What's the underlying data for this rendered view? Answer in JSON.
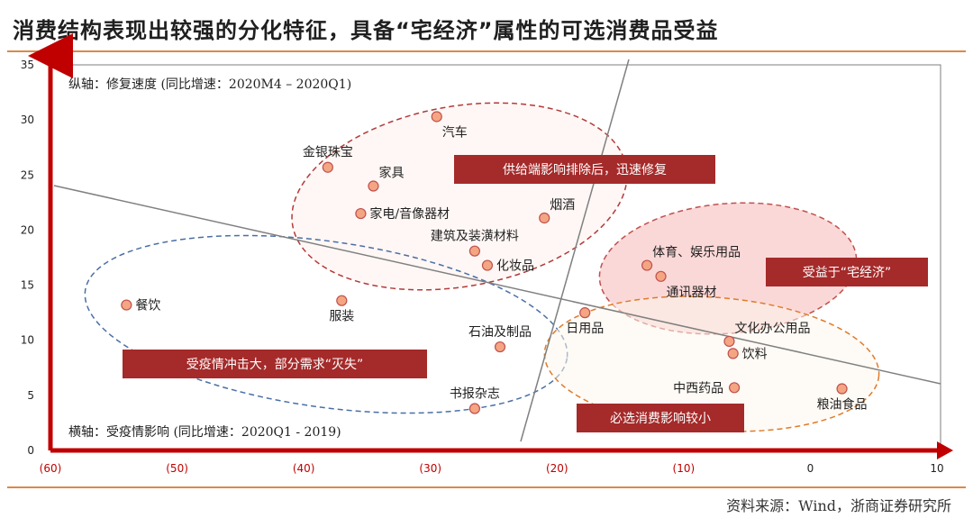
{
  "header": {
    "title": "消费结构表现出较强的分化特征，具备“宅经济”属性的可选消费品受益"
  },
  "footer": {
    "source": "资料来源：Wind，浙商证券研究所"
  },
  "colors": {
    "axis": "#c00000",
    "frame": "#7f7f7f",
    "point_fill": "#f4a582",
    "point_stroke": "#c0504d",
    "callout_fill": "#a52a2a",
    "title_rule": "#d98a4a",
    "positive_tick": "#222222"
  },
  "chart_data": {
    "type": "scatter",
    "title": "消费结构表现出较强的分化特征，具备“宅经济”属性的可选消费品受益",
    "xlabel": "横轴：受疫情影响 (同比增速：2020Q1 - 2019)",
    "ylabel": "纵轴：修复速度 (同比增速：2020M4 – 2020Q1)",
    "xlim": [
      -60,
      10
    ],
    "ylim": [
      0,
      35
    ],
    "x_ticks": [
      {
        "value": -60,
        "label": "(60)"
      },
      {
        "value": -50,
        "label": "(50)"
      },
      {
        "value": -40,
        "label": "(40)"
      },
      {
        "value": -30,
        "label": "(30)"
      },
      {
        "value": -20,
        "label": "(20)"
      },
      {
        "value": -10,
        "label": "(10)"
      },
      {
        "value": 0,
        "label": "0"
      },
      {
        "value": 10,
        "label": "10"
      }
    ],
    "y_ticks": [
      {
        "value": 0,
        "label": "0"
      },
      {
        "value": 5,
        "label": "5"
      },
      {
        "value": 10,
        "label": "10"
      },
      {
        "value": 15,
        "label": "15"
      },
      {
        "value": 20,
        "label": "20"
      },
      {
        "value": 25,
        "label": "25"
      },
      {
        "value": 30,
        "label": "30"
      },
      {
        "value": 35,
        "label": "35"
      }
    ],
    "grid": false,
    "points": [
      {
        "name": "汽车",
        "x": -29.5,
        "y": 30.3,
        "label_pos": "below-right"
      },
      {
        "name": "金银珠宝",
        "x": -38.1,
        "y": 25.7,
        "label_pos": "above"
      },
      {
        "name": "家具",
        "x": -34.5,
        "y": 24.0,
        "label_pos": "above-right"
      },
      {
        "name": "家电/音像器材",
        "x": -35.5,
        "y": 21.5,
        "label_pos": "right"
      },
      {
        "name": "烟酒",
        "x": -21.0,
        "y": 21.1,
        "label_pos": "above-right"
      },
      {
        "name": "建筑及装潢材料",
        "x": -26.5,
        "y": 18.1,
        "label_pos": "above"
      },
      {
        "name": "化妆品",
        "x": -25.5,
        "y": 16.8,
        "label_pos": "right"
      },
      {
        "name": "餐饮",
        "x": -54.0,
        "y": 13.2,
        "label_pos": "right"
      },
      {
        "name": "服装",
        "x": -37.0,
        "y": 13.6,
        "label_pos": "below"
      },
      {
        "name": "石油及制品",
        "x": -24.5,
        "y": 9.4,
        "label_pos": "above"
      },
      {
        "name": "书报杂志",
        "x": -26.5,
        "y": 3.8,
        "label_pos": "above"
      },
      {
        "name": "日用品",
        "x": -17.8,
        "y": 12.5,
        "label_pos": "below"
      },
      {
        "name": "体育、娱乐用品",
        "x": -12.9,
        "y": 16.8,
        "label_pos": "above-right"
      },
      {
        "name": "通讯器材",
        "x": -11.8,
        "y": 15.8,
        "label_pos": "below-right"
      },
      {
        "name": "文化办公用品",
        "x": -6.4,
        "y": 9.9,
        "label_pos": "above-right"
      },
      {
        "name": "饮料",
        "x": -6.1,
        "y": 8.8,
        "label_pos": "right"
      },
      {
        "name": "中西药品",
        "x": -6.0,
        "y": 5.7,
        "label_pos": "left"
      },
      {
        "name": "粮油食品",
        "x": 2.5,
        "y": 5.6,
        "label_pos": "below"
      }
    ],
    "callouts": [
      {
        "text": "供给端影响排除后，迅速修复"
      },
      {
        "text": "受益于“宅经济”"
      },
      {
        "text": "受疫情冲击大，部分需求“灭失”"
      },
      {
        "text": "必选消费影响较小"
      }
    ]
  }
}
